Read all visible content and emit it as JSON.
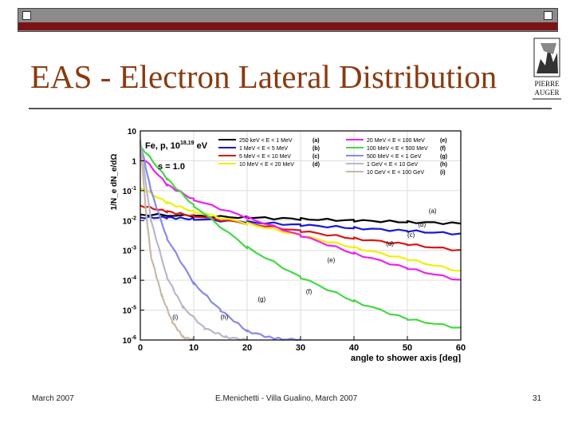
{
  "slide": {
    "title": "EAS - Electron Lateral Distribution",
    "footer_left": "March 2007",
    "footer_center": "E.Menichetti - Villa Gualino, March 2007",
    "footer_right": "31",
    "logo_text": [
      "PIERRE",
      "AUGER"
    ]
  },
  "chart_data": {
    "type": "line",
    "title": "Fe, p, 10^18,19 eV",
    "subtitle": "s = 1.0",
    "xlabel": "angle to shower axis [deg]",
    "ylabel": "1/N_e dN_e/dΩ",
    "xlim": [
      0,
      60
    ],
    "ylim_log10": [
      -6,
      1
    ],
    "x_ticks": [
      "0",
      "10",
      "20",
      "30",
      "40",
      "50",
      "60"
    ],
    "y_ticks": [
      "10",
      "1",
      "10^-1",
      "10^-2",
      "10^-3",
      "10^-4",
      "10^-5",
      "10^-6"
    ],
    "legend": [
      {
        "label": "250 keV < E < 1 MeV",
        "tag": "(a)",
        "color": "#000000"
      },
      {
        "label": "1 MeV < E < 5 MeV",
        "tag": "(b)",
        "color": "#1818d8"
      },
      {
        "label": "5 MeV < E < 10 MeV",
        "tag": "(c)",
        "color": "#d81818"
      },
      {
        "label": "10 MeV < E < 20 MeV",
        "tag": "(d)",
        "color": "#f0f000"
      },
      {
        "label": "20 MeV < E < 100 MeV",
        "tag": "(e)",
        "color": "#ee22ee"
      },
      {
        "label": "100 MeV < E < 500 MeV",
        "tag": "(f)",
        "color": "#44d844"
      },
      {
        "label": "500 MeV < E < 1 GeV",
        "tag": "(g)",
        "color": "#8888ee"
      },
      {
        "label": "1 GeV < E < 10 GeV",
        "tag": "(h)",
        "color": "#b8b8cc"
      },
      {
        "label": "10 GeV < E < 100 GeV",
        "tag": "(i)",
        "color": "#c8b8a8"
      }
    ],
    "series": [
      {
        "tag": "(a)",
        "color": "#000000",
        "x": [
          0,
          10,
          20,
          30,
          40,
          50,
          60
        ],
        "log10_y": [
          -1.8,
          -1.85,
          -1.9,
          -1.95,
          -2.0,
          -2.05,
          -2.1
        ]
      },
      {
        "tag": "(b)",
        "color": "#1818d8",
        "x": [
          0,
          5,
          10,
          20,
          30,
          40,
          50,
          60
        ],
        "log10_y": [
          -1.9,
          -1.9,
          -1.95,
          -2.05,
          -2.15,
          -2.25,
          -2.35,
          -2.45
        ]
      },
      {
        "tag": "(c)",
        "color": "#d81818",
        "x": [
          0,
          5,
          10,
          20,
          30,
          40,
          50,
          60
        ],
        "log10_y": [
          -1.5,
          -1.7,
          -1.85,
          -2.1,
          -2.35,
          -2.6,
          -2.8,
          -3.0
        ]
      },
      {
        "tag": "(d)",
        "color": "#f0f000",
        "x": [
          0,
          5,
          10,
          20,
          30,
          40,
          50,
          60
        ],
        "log10_y": [
          -0.9,
          -1.4,
          -1.7,
          -2.1,
          -2.5,
          -2.9,
          -3.3,
          -3.7
        ]
      },
      {
        "tag": "(e)",
        "color": "#ee22ee",
        "x": [
          0,
          5,
          10,
          20,
          30,
          40,
          50,
          60
        ],
        "log10_y": [
          0.2,
          -0.8,
          -1.3,
          -1.9,
          -2.5,
          -3.1,
          -3.6,
          -4.0
        ]
      },
      {
        "tag": "(f)",
        "color": "#44d844",
        "x": [
          0,
          5,
          10,
          20,
          30,
          40,
          50,
          60
        ],
        "log10_y": [
          0.5,
          -0.6,
          -1.5,
          -2.9,
          -3.9,
          -4.7,
          -5.3,
          -5.6
        ]
      },
      {
        "tag": "(g)",
        "color": "#8888ee",
        "x": [
          0,
          2,
          5,
          10,
          15,
          20,
          25,
          30
        ],
        "log10_y": [
          0.6,
          -1.0,
          -2.6,
          -4.1,
          -5.0,
          -5.7,
          -5.95,
          -6.0
        ]
      },
      {
        "tag": "(h)",
        "color": "#b8b8cc",
        "x": [
          0,
          2,
          5,
          8,
          12,
          16,
          20
        ],
        "log10_y": [
          0.6,
          -2.0,
          -3.9,
          -4.9,
          -5.6,
          -5.9,
          -6.0
        ]
      },
      {
        "tag": "(i)",
        "color": "#c8b8a8",
        "x": [
          0,
          1,
          2,
          4,
          6,
          8,
          10
        ],
        "log10_y": [
          0.7,
          -1.6,
          -3.2,
          -4.5,
          -5.4,
          -5.9,
          -6.0
        ]
      }
    ],
    "grid": true,
    "legend_position": "top"
  }
}
